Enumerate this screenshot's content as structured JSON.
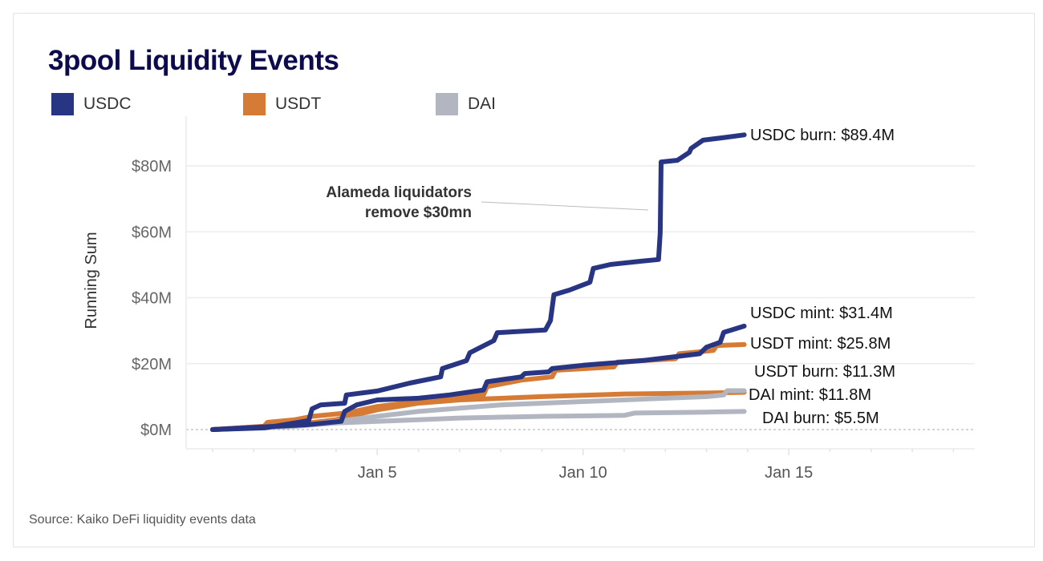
{
  "chart_data": {
    "type": "line",
    "title": "3pool Liquidity Events",
    "ylabel": "Running Sum",
    "xlabel": "",
    "y_ticks": [
      "$0M",
      "$20M",
      "$40M",
      "$60M",
      "$80M"
    ],
    "y_tick_values": [
      0,
      20,
      40,
      60,
      80
    ],
    "x_ticks": [
      "Jan 5",
      "Jan 10",
      "Jan 15"
    ],
    "ylim": [
      -6,
      95
    ],
    "xlim": [
      "Dec 31 08:00",
      "Jan 19 12:00"
    ],
    "grid": "horizontal",
    "legend_placement": "top-left",
    "legend": [
      {
        "label": "USDC",
        "color": "#283583"
      },
      {
        "label": "USDT",
        "color": "#d57b35"
      },
      {
        "label": "DAI",
        "color": "#b1b6c0"
      }
    ],
    "series": [
      {
        "name": "USDC burn",
        "label": "USDC burn: $89.4M",
        "color": "#283583",
        "points": [
          [
            "Jan 1 00:00",
            0
          ],
          [
            "Jan 2 06:30",
            0.5
          ],
          [
            "Jan 3 08:00",
            2.7
          ],
          [
            "Jan 3 10:00",
            6.3
          ],
          [
            "Jan 3 15:00",
            7.5
          ],
          [
            "Jan 4 05:00",
            8.0
          ],
          [
            "Jan 4 06:00",
            10.5
          ],
          [
            "Jan 5 00:00",
            11.7
          ],
          [
            "Jan 5 19:00",
            14.1
          ],
          [
            "Jan 6 13:00",
            16.0
          ],
          [
            "Jan 6 14:00",
            18.5
          ],
          [
            "Jan 7 04:00",
            20.9
          ],
          [
            "Jan 7 06:00",
            23.3
          ],
          [
            "Jan 7 20:00",
            27.0
          ],
          [
            "Jan 7 22:00",
            29.4
          ],
          [
            "Jan 9 02:00",
            30.2
          ],
          [
            "Jan 9 05:00",
            33.1
          ],
          [
            "Jan 9 07:00",
            40.9
          ],
          [
            "Jan 9 16:00",
            42.3
          ],
          [
            "Jan 10 04:00",
            44.7
          ],
          [
            "Jan 10 06:00",
            48.9
          ],
          [
            "Jan 10 16:00",
            50.1
          ],
          [
            "Jan 11 10:00",
            51.1
          ],
          [
            "Jan 11 20:00",
            51.6
          ],
          [
            "Jan 11 21:00",
            59.8
          ],
          [
            "Jan 11 21:30",
            81.2
          ],
          [
            "Jan 12 07:00",
            81.7
          ],
          [
            "Jan 12 14:00",
            84.1
          ],
          [
            "Jan 12 15:00",
            85.3
          ],
          [
            "Jan 12 22:00",
            87.8
          ],
          [
            "Jan 13 09:00",
            88.5
          ],
          [
            "Jan 13 22:00",
            89.4
          ]
        ]
      },
      {
        "name": "USDC mint",
        "label": "USDC mint: $31.4M",
        "color": "#283583",
        "points": [
          [
            "Jan 1 00:00",
            0
          ],
          [
            "Jan 3 08:00",
            1.5
          ],
          [
            "Jan 4 03:00",
            2.5
          ],
          [
            "Jan 4 05:00",
            5.5
          ],
          [
            "Jan 4 12:00",
            7.5
          ],
          [
            "Jan 5 00:00",
            9
          ],
          [
            "Jan 6 00:00",
            9.5
          ],
          [
            "Jan 6 18:00",
            10.5
          ],
          [
            "Jan 7 14:00",
            12
          ],
          [
            "Jan 7 16:00",
            14.5
          ],
          [
            "Jan 8 12:00",
            16
          ],
          [
            "Jan 8 14:00",
            17
          ],
          [
            "Jan 9 04:00",
            17.5
          ],
          [
            "Jan 9 06:00",
            18.5
          ],
          [
            "Jan 10 00:00",
            19.5
          ],
          [
            "Jan 11 00:00",
            20.5
          ],
          [
            "Jan 11 12:00",
            21
          ],
          [
            "Jan 12 04:00",
            22
          ],
          [
            "Jan 12 20:00",
            23
          ],
          [
            "Jan 13 00:00",
            25
          ],
          [
            "Jan 13 08:00",
            26.5
          ],
          [
            "Jan 13 10:00",
            29.5
          ],
          [
            "Jan 13 22:00",
            31.4
          ]
        ]
      },
      {
        "name": "USDT mint",
        "label": "USDT mint: $25.8M",
        "color": "#d57b35",
        "points": [
          [
            "Jan 1 00:00",
            0
          ],
          [
            "Jan 2 06:00",
            1
          ],
          [
            "Jan 2 08:00",
            2.2
          ],
          [
            "Jan 3 00:00",
            3
          ],
          [
            "Jan 3 10:00",
            4
          ],
          [
            "Jan 4 06:00",
            5
          ],
          [
            "Jan 5 00:00",
            7
          ],
          [
            "Jan 6 00:00",
            8.5
          ],
          [
            "Jan 6 12:00",
            9.5
          ],
          [
            "Jan 7 14:00",
            10.5
          ],
          [
            "Jan 7 16:00",
            13
          ],
          [
            "Jan 8 12:00",
            15
          ],
          [
            "Jan 9 06:00",
            16
          ],
          [
            "Jan 9 08:00",
            18
          ],
          [
            "Jan 10 18:00",
            19
          ],
          [
            "Jan 10 20:00",
            20.5
          ],
          [
            "Jan 12 06:00",
            21.5
          ],
          [
            "Jan 12 08:00",
            23
          ],
          [
            "Jan 13 04:00",
            24
          ],
          [
            "Jan 13 06:00",
            25.5
          ],
          [
            "Jan 13 22:00",
            25.8
          ]
        ]
      },
      {
        "name": "USDT burn",
        "label": "USDT burn: $11.3M",
        "color": "#d57b35",
        "points": [
          [
            "Jan 1 00:00",
            0
          ],
          [
            "Jan 3 00:00",
            1.5
          ],
          [
            "Jan 4 00:00",
            3
          ],
          [
            "Jan 5 00:00",
            6
          ],
          [
            "Jan 6 00:00",
            8
          ],
          [
            "Jan 7 00:00",
            9
          ],
          [
            "Jan 9 00:00",
            10
          ],
          [
            "Jan 11 00:00",
            10.8
          ],
          [
            "Jan 13 00:00",
            11.1
          ],
          [
            "Jan 13 22:00",
            11.3
          ]
        ]
      },
      {
        "name": "DAI mint",
        "label": "DAI mint: $11.8M",
        "color": "#b1b6c0",
        "points": [
          [
            "Jan 1 00:00",
            0
          ],
          [
            "Jan 3 00:00",
            1
          ],
          [
            "Jan 4 00:00",
            2.5
          ],
          [
            "Jan 5 00:00",
            4
          ],
          [
            "Jan 6 00:00",
            5.5
          ],
          [
            "Jan 7 00:00",
            6.5
          ],
          [
            "Jan 8 00:00",
            7.5
          ],
          [
            "Jan 9 00:00",
            8
          ],
          [
            "Jan 10 00:00",
            8.5
          ],
          [
            "Jan 11 00:00",
            9
          ],
          [
            "Jan 12 00:00",
            9.5
          ],
          [
            "Jan 13 00:00",
            10
          ],
          [
            "Jan 13 10:00",
            10.5
          ],
          [
            "Jan 13 12:00",
            11.8
          ],
          [
            "Jan 13 22:00",
            11.8
          ]
        ]
      },
      {
        "name": "DAI burn",
        "label": "DAI burn: $5.5M",
        "color": "#b1b6c0",
        "points": [
          [
            "Jan 1 00:00",
            0
          ],
          [
            "Jan 3 00:00",
            1
          ],
          [
            "Jan 4 00:00",
            2
          ],
          [
            "Jan 5 00:00",
            2.5
          ],
          [
            "Jan 6 00:00",
            3
          ],
          [
            "Jan 7 00:00",
            3.5
          ],
          [
            "Jan 9 00:00",
            4
          ],
          [
            "Jan 11 00:00",
            4.3
          ],
          [
            "Jan 11 06:00",
            5
          ],
          [
            "Jan 13 00:00",
            5.3
          ],
          [
            "Jan 13 22:00",
            5.5
          ]
        ]
      }
    ],
    "annotations": [
      {
        "text_line1": "Alameda liquidators",
        "text_line2": "remove $30mn",
        "target": [
          "Jan 11 21:00",
          66
        ]
      }
    ],
    "source": "Source: Kaiko DeFi liquidity events data"
  }
}
